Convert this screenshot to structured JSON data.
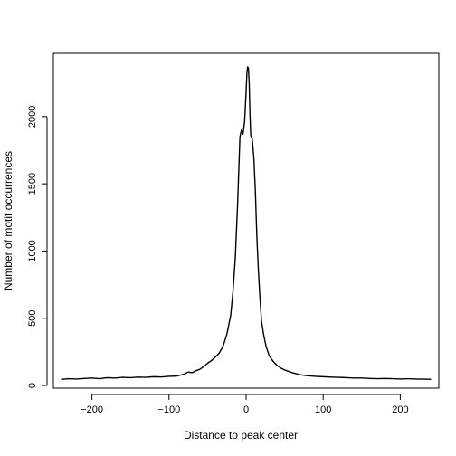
{
  "chart_data": {
    "type": "line",
    "title": "",
    "xlabel": "Distance to peak center",
    "ylabel": "Number of motif occurrences",
    "xlim": [
      -250,
      250
    ],
    "ylim": [
      -20,
      2470
    ],
    "x_ticks": [
      -200,
      -100,
      0,
      100,
      200
    ],
    "y_ticks": [
      0,
      500,
      1000,
      1500,
      2000
    ],
    "x_tick_labels": [
      "−200",
      "−100",
      "0",
      "100",
      "200"
    ],
    "y_tick_labels": [
      "0",
      "500",
      "1000",
      "1500",
      "2000"
    ],
    "grid": false,
    "legend": "none",
    "line_color": "#000000",
    "series": [
      {
        "x": [
          -240,
          -230,
          -220,
          -210,
          -200,
          -190,
          -180,
          -170,
          -160,
          -150,
          -140,
          -130,
          -120,
          -110,
          -100,
          -90,
          -80,
          -75,
          -70,
          -65,
          -60,
          -55,
          -50,
          -45,
          -40,
          -35,
          -30,
          -25,
          -20,
          -17,
          -14,
          -11,
          -8,
          -6,
          -4,
          -2,
          0,
          1,
          2,
          3,
          4,
          5,
          6,
          8,
          10,
          12,
          14,
          16,
          18,
          20,
          23,
          26,
          30,
          35,
          40,
          45,
          50,
          55,
          60,
          70,
          80,
          90,
          100,
          110,
          120,
          130,
          140,
          150,
          160,
          170,
          180,
          190,
          200,
          210,
          220,
          230,
          240
        ],
        "values": [
          45,
          50,
          48,
          52,
          55,
          50,
          58,
          55,
          60,
          58,
          62,
          60,
          65,
          63,
          68,
          70,
          85,
          100,
          95,
          110,
          120,
          140,
          165,
          185,
          210,
          240,
          290,
          380,
          520,
          700,
          950,
          1350,
          1850,
          1900,
          1870,
          1960,
          2180,
          2320,
          2370,
          2360,
          2250,
          2020,
          1860,
          1830,
          1700,
          1450,
          1100,
          850,
          650,
          480,
          370,
          290,
          220,
          180,
          150,
          130,
          115,
          105,
          95,
          80,
          72,
          68,
          65,
          62,
          60,
          58,
          55,
          55,
          52,
          50,
          52,
          50,
          48,
          50,
          48,
          47,
          46
        ]
      }
    ]
  }
}
